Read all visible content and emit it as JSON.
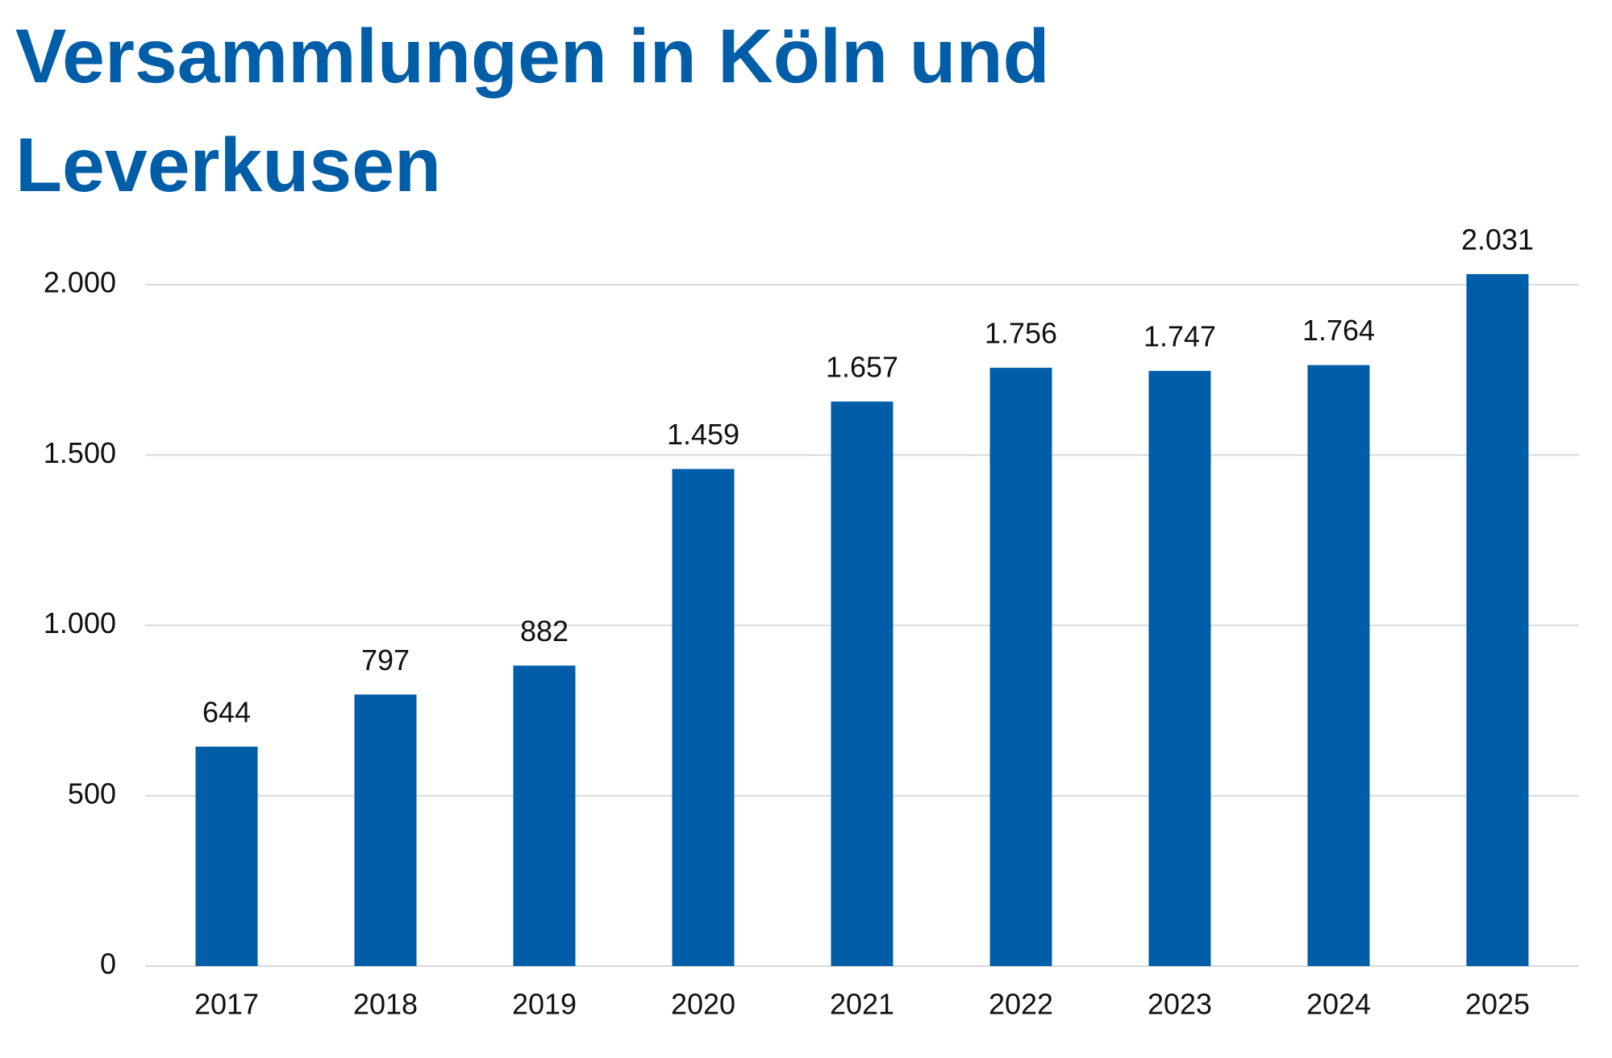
{
  "chart_data": {
    "type": "bar",
    "title": "Versammlungen in Köln und Leverkusen",
    "categories": [
      "2017",
      "2018",
      "2019",
      "2020",
      "2021",
      "2022",
      "2023",
      "2024",
      "2025"
    ],
    "values": [
      644,
      797,
      882,
      1459,
      1657,
      1756,
      1747,
      1764,
      2031
    ],
    "value_labels": [
      "644",
      "797",
      "882",
      "1.459",
      "1.657",
      "1.756",
      "1.747",
      "1.764",
      "2.031"
    ],
    "color": "#005ea8",
    "ylim": [
      0,
      2000
    ],
    "yticks": [
      0,
      500,
      {
        "value": 1000,
        "label": "1.000"
      },
      {
        "value": 1500,
        "label": "1.500"
      },
      {
        "value": 2000,
        "label": "2.000"
      }
    ],
    "grid": true
  }
}
